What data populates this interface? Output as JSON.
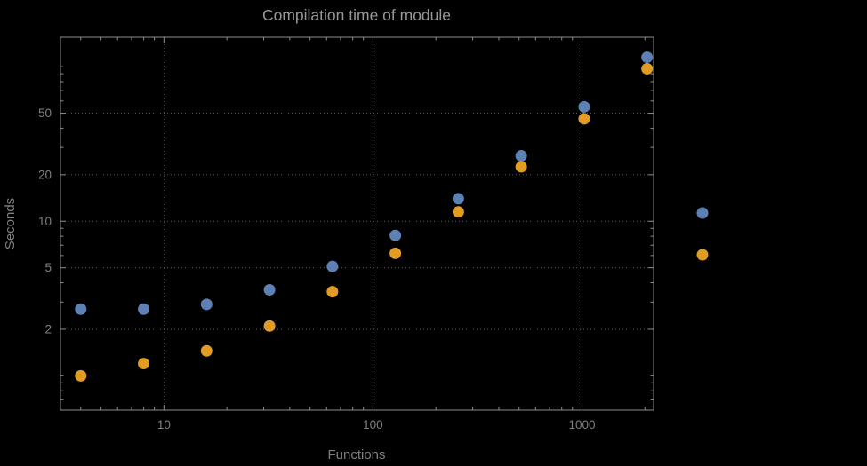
{
  "chart_data": {
    "type": "scatter",
    "title": "Compilation time of module",
    "xlabel": "Functions",
    "ylabel": "Seconds",
    "x_scale": "log",
    "y_scale": "log",
    "xlim": [
      3.2,
      2200
    ],
    "ylim": [
      0.6,
      155
    ],
    "x_ticks": [
      10,
      100,
      1000
    ],
    "y_ticks": [
      2,
      5,
      10,
      20,
      50
    ],
    "grid": "dotted",
    "x": [
      4,
      8,
      16,
      32,
      64,
      128,
      256,
      512,
      1024,
      2048
    ],
    "series": [
      {
        "name": "blue",
        "color": "#5e81b5",
        "values": [
          2.7,
          2.7,
          2.9,
          3.6,
          5.1,
          8.1,
          14,
          26.5,
          55,
          115
        ]
      },
      {
        "name": "orange",
        "color": "#e19c24",
        "values": [
          1.0,
          1.2,
          1.45,
          2.1,
          3.5,
          6.2,
          11.5,
          22.5,
          46,
          97
        ]
      }
    ],
    "legend": {
      "position": "right-outside",
      "labels_visible": false
    },
    "colors": {
      "background": "#000000",
      "frame": "#8c8c8c",
      "grid": "#5a5a5a",
      "tick": "#8c8c8c",
      "title_text": "#989898",
      "label_text": "#7f7f7f",
      "tick_text": "#7f7f7f"
    }
  }
}
